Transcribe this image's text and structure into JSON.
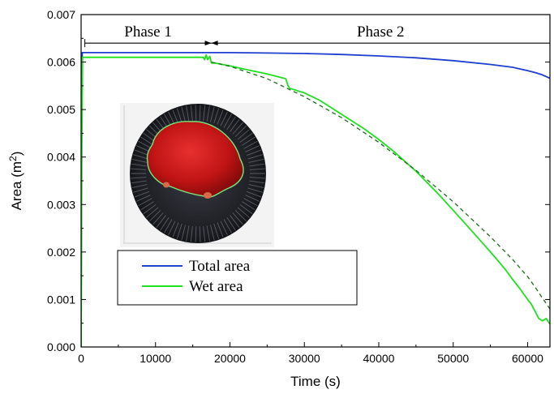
{
  "chart_data": {
    "type": "line",
    "xlabel": "Time (s)",
    "ylabel_base": "Area (m",
    "ylabel_sup": "2",
    "ylabel_tail": ")",
    "xlim": [
      0,
      63000
    ],
    "ylim": [
      0,
      0.007
    ],
    "x_ticks": [
      0,
      10000,
      20000,
      30000,
      40000,
      50000,
      60000
    ],
    "x_tick_labels": [
      "0",
      "10000",
      "20000",
      "30000",
      "40000",
      "50000",
      "60000"
    ],
    "y_ticks": [
      0,
      0.001,
      0.002,
      0.003,
      0.004,
      0.005,
      0.006,
      0.007
    ],
    "y_tick_labels": [
      "0.000",
      "0.001",
      "0.002",
      "0.003",
      "0.004",
      "0.005",
      "0.006",
      "0.007"
    ],
    "grid": false,
    "legend_position": "lower-left",
    "phases": [
      {
        "label": "Phase 1",
        "x_start": 500,
        "x_end": 17500
      },
      {
        "label": "Phase 2",
        "x_start": 17500,
        "x_end": 63000
      }
    ],
    "phase_arrow_y": 0.0064,
    "series": [
      {
        "name": "Total area",
        "color": "#1f3fd1",
        "dashed": false,
        "points": [
          [
            0,
            0
          ],
          [
            80,
            0.0045
          ],
          [
            150,
            0.0062
          ],
          [
            600,
            0.0062
          ],
          [
            10000,
            0.0062
          ],
          [
            20000,
            0.0062
          ],
          [
            25000,
            0.00619
          ],
          [
            30000,
            0.00618
          ],
          [
            35000,
            0.00616
          ],
          [
            40000,
            0.00613
          ],
          [
            45000,
            0.00609
          ],
          [
            50000,
            0.00603
          ],
          [
            55000,
            0.00595
          ],
          [
            58000,
            0.00589
          ],
          [
            60000,
            0.00582
          ],
          [
            61000,
            0.00578
          ],
          [
            62000,
            0.00573
          ],
          [
            63000,
            0.00566
          ]
        ]
      },
      {
        "name": "Wet area",
        "color": "#1ee11e",
        "dashed": false,
        "points": [
          [
            0,
            0
          ],
          [
            100,
            0.0042
          ],
          [
            200,
            0.0061
          ],
          [
            700,
            0.0061
          ],
          [
            5000,
            0.0061
          ],
          [
            10000,
            0.0061
          ],
          [
            15000,
            0.0061
          ],
          [
            16400,
            0.0061
          ],
          [
            16600,
            0.00605
          ],
          [
            16800,
            0.00615
          ],
          [
            17000,
            0.00605
          ],
          [
            17300,
            0.00612
          ],
          [
            17500,
            0.00598
          ],
          [
            18000,
            0.00598
          ],
          [
            20000,
            0.00592
          ],
          [
            22000,
            0.00585
          ],
          [
            25000,
            0.00575
          ],
          [
            27500,
            0.00565
          ],
          [
            27800,
            0.0055
          ],
          [
            28000,
            0.00545
          ],
          [
            30000,
            0.00535
          ],
          [
            32000,
            0.0052
          ],
          [
            35000,
            0.0049
          ],
          [
            38000,
            0.0046
          ],
          [
            40000,
            0.00437
          ],
          [
            42000,
            0.00412
          ],
          [
            45000,
            0.0037
          ],
          [
            48000,
            0.00322
          ],
          [
            50000,
            0.00288
          ],
          [
            52000,
            0.00253
          ],
          [
            54000,
            0.00218
          ],
          [
            56000,
            0.00182
          ],
          [
            57000,
            0.00163
          ],
          [
            58000,
            0.00142
          ],
          [
            59000,
            0.00122
          ],
          [
            60000,
            0.001
          ],
          [
            60500,
            0.0009
          ],
          [
            61000,
            0.00075
          ],
          [
            61500,
            0.0006
          ],
          [
            62000,
            0.00055
          ],
          [
            62500,
            0.0006
          ],
          [
            63000,
            0.00048
          ]
        ]
      },
      {
        "name": "",
        "color": "#1e6b1e",
        "dashed": true,
        "points": [
          [
            17500,
            0.006
          ],
          [
            20000,
            0.00591
          ],
          [
            25000,
            0.00565
          ],
          [
            30000,
            0.00527
          ],
          [
            35000,
            0.00483
          ],
          [
            40000,
            0.00431
          ],
          [
            45000,
            0.00372
          ],
          [
            50000,
            0.00306
          ],
          [
            55000,
            0.00232
          ],
          [
            58000,
            0.00184
          ],
          [
            60000,
            0.00148
          ],
          [
            61000,
            0.00126
          ],
          [
            62000,
            0.00103
          ],
          [
            63000,
            0.0008
          ]
        ]
      }
    ],
    "legend_entries": [
      "Total area",
      "Wet area"
    ]
  },
  "inset": {
    "description_icon": "wet-surface-photo-icon"
  }
}
